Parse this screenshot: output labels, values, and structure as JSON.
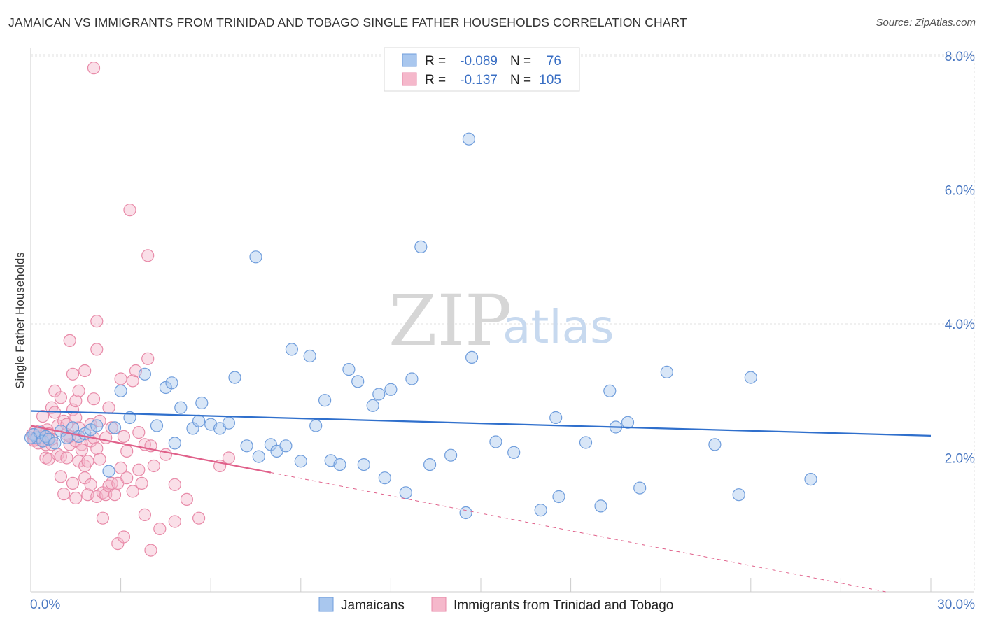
{
  "title": "JAMAICAN VS IMMIGRANTS FROM TRINIDAD AND TOBAGO SINGLE FATHER HOUSEHOLDS CORRELATION CHART",
  "source": "Source: ZipAtlas.com",
  "watermark": {
    "zip": "ZIP",
    "atlas": "atlas"
  },
  "colors": {
    "blue_fill": "#a9c7ee",
    "blue_stroke": "#6f9ddc",
    "blue_line": "#2f6fcc",
    "pink_fill": "#f5b8cb",
    "pink_stroke": "#e88aa8",
    "pink_line": "#e0608a",
    "axis_label": "#4a78c2",
    "grid": "#e2e2e2"
  },
  "legend": {
    "rows": [
      {
        "r_label": "R =",
        "r_value": "-0.089",
        "n_label": "N =",
        "n_value": "76"
      },
      {
        "r_label": "R =",
        "r_value": "-0.137",
        "n_label": "N =",
        "n_value": "105"
      }
    ]
  },
  "bottom_legend": [
    "Jamaicans",
    "Immigrants from Trinidad and Tobago"
  ],
  "chart_data": {
    "type": "scatter",
    "title": "JAMAICAN VS IMMIGRANTS FROM TRINIDAD AND TOBAGO SINGLE FATHER HOUSEHOLDS CORRELATION CHART",
    "xlabel": "",
    "ylabel": "Single Father Households",
    "xlim": [
      0,
      30
    ],
    "ylim": [
      0,
      8.4
    ],
    "x_ticks_labeled": [
      0,
      30
    ],
    "x_tick_labels": [
      "0.0%",
      "30.0%"
    ],
    "y_ticks": [
      2,
      4,
      6,
      8
    ],
    "y_tick_labels": [
      "2.0%",
      "4.0%",
      "6.0%",
      "8.0%"
    ],
    "grid": true,
    "legend_position": "top-center",
    "series": [
      {
        "name": "Jamaicans",
        "color": "#6f9ddc",
        "r": -0.089,
        "n": 76,
        "trend": {
          "x0": 0,
          "y0": 2.7,
          "x1": 30,
          "y1": 2.33
        },
        "points": [
          [
            0.1,
            2.35
          ],
          [
            0.2,
            2.3
          ],
          [
            0.3,
            2.38
          ],
          [
            0.4,
            2.25
          ],
          [
            0.5,
            2.32
          ],
          [
            0.6,
            2.28
          ],
          [
            0.8,
            2.22
          ],
          [
            1.0,
            2.4
          ],
          [
            1.2,
            2.3
          ],
          [
            1.4,
            2.45
          ],
          [
            1.6,
            2.32
          ],
          [
            1.8,
            2.36
          ],
          [
            2.0,
            2.42
          ],
          [
            2.2,
            2.48
          ],
          [
            2.6,
            1.8
          ],
          [
            2.8,
            2.45
          ],
          [
            3.0,
            3.0
          ],
          [
            3.3,
            2.6
          ],
          [
            3.8,
            3.25
          ],
          [
            4.2,
            2.48
          ],
          [
            4.5,
            3.05
          ],
          [
            4.7,
            3.12
          ],
          [
            4.8,
            2.22
          ],
          [
            5.0,
            2.75
          ],
          [
            5.4,
            2.44
          ],
          [
            5.6,
            2.55
          ],
          [
            5.7,
            2.82
          ],
          [
            6.0,
            2.5
          ],
          [
            6.3,
            2.44
          ],
          [
            6.6,
            2.52
          ],
          [
            6.8,
            3.2
          ],
          [
            7.2,
            2.18
          ],
          [
            7.5,
            5.0
          ],
          [
            7.6,
            2.02
          ],
          [
            8.0,
            2.2
          ],
          [
            8.2,
            2.1
          ],
          [
            8.5,
            2.18
          ],
          [
            8.7,
            3.62
          ],
          [
            9.0,
            1.95
          ],
          [
            9.3,
            3.52
          ],
          [
            9.5,
            2.48
          ],
          [
            9.8,
            2.86
          ],
          [
            10.0,
            1.96
          ],
          [
            10.3,
            1.9
          ],
          [
            10.6,
            3.32
          ],
          [
            10.9,
            3.14
          ],
          [
            11.1,
            1.9
          ],
          [
            11.4,
            2.78
          ],
          [
            11.6,
            2.95
          ],
          [
            11.8,
            1.7
          ],
          [
            12.0,
            3.02
          ],
          [
            12.5,
            1.48
          ],
          [
            12.7,
            3.18
          ],
          [
            13.0,
            5.15
          ],
          [
            13.3,
            1.9
          ],
          [
            14.0,
            2.04
          ],
          [
            14.5,
            1.18
          ],
          [
            14.6,
            6.76
          ],
          [
            14.7,
            3.5
          ],
          [
            15.5,
            2.24
          ],
          [
            16.1,
            2.08
          ],
          [
            17.0,
            1.22
          ],
          [
            17.5,
            2.6
          ],
          [
            17.6,
            1.42
          ],
          [
            18.5,
            2.23
          ],
          [
            19.0,
            1.28
          ],
          [
            19.3,
            3.0
          ],
          [
            19.5,
            2.46
          ],
          [
            19.9,
            2.53
          ],
          [
            20.3,
            1.55
          ],
          [
            21.2,
            3.28
          ],
          [
            22.8,
            2.2
          ],
          [
            23.6,
            1.45
          ],
          [
            24.0,
            3.2
          ],
          [
            26.0,
            1.68
          ],
          [
            0.0,
            2.3
          ]
        ]
      },
      {
        "name": "Immigrants from Trinidad and Tobago",
        "color": "#e88aa8",
        "r": -0.137,
        "n": 105,
        "trend_solid": {
          "x0": 0,
          "y0": 2.48,
          "x1": 8.0,
          "y1": 1.78
        },
        "trend_dashed": {
          "x0": 8.0,
          "y0": 1.78,
          "x1": 28.5,
          "y1": 0.0
        },
        "points": [
          [
            0.05,
            2.35
          ],
          [
            0.1,
            2.28
          ],
          [
            0.15,
            2.4
          ],
          [
            0.2,
            2.32
          ],
          [
            0.25,
            2.22
          ],
          [
            0.3,
            2.38
          ],
          [
            0.35,
            2.3
          ],
          [
            0.4,
            2.26
          ],
          [
            0.45,
            2.34
          ],
          [
            0.5,
            2.2
          ],
          [
            0.55,
            2.42
          ],
          [
            0.6,
            2.3
          ],
          [
            0.4,
            2.62
          ],
          [
            0.5,
            2.0
          ],
          [
            0.6,
            1.98
          ],
          [
            0.7,
            2.75
          ],
          [
            0.7,
            2.2
          ],
          [
            0.8,
            3.0
          ],
          [
            0.8,
            2.68
          ],
          [
            0.9,
            2.05
          ],
          [
            0.9,
            2.48
          ],
          [
            1.0,
            2.9
          ],
          [
            1.0,
            2.02
          ],
          [
            1.0,
            1.72
          ],
          [
            1.1,
            2.55
          ],
          [
            1.1,
            1.46
          ],
          [
            1.2,
            2.35
          ],
          [
            1.2,
            2.0
          ],
          [
            1.3,
            3.75
          ],
          [
            1.3,
            2.2
          ],
          [
            1.4,
            2.72
          ],
          [
            1.4,
            1.62
          ],
          [
            1.4,
            3.25
          ],
          [
            1.5,
            2.85
          ],
          [
            1.5,
            2.25
          ],
          [
            1.5,
            1.4
          ],
          [
            1.6,
            3.0
          ],
          [
            1.6,
            2.45
          ],
          [
            1.6,
            1.95
          ],
          [
            1.7,
            2.2
          ],
          [
            1.7,
            2.12
          ],
          [
            1.8,
            1.88
          ],
          [
            1.8,
            3.3
          ],
          [
            1.8,
            1.7
          ],
          [
            1.9,
            1.95
          ],
          [
            1.9,
            1.45
          ],
          [
            2.0,
            2.5
          ],
          [
            2.0,
            2.25
          ],
          [
            2.0,
            1.6
          ],
          [
            2.1,
            2.88
          ],
          [
            2.1,
            2.3
          ],
          [
            2.2,
            2.14
          ],
          [
            2.2,
            1.42
          ],
          [
            2.2,
            3.62
          ],
          [
            2.2,
            4.04
          ],
          [
            2.3,
            2.55
          ],
          [
            2.3,
            1.98
          ],
          [
            2.4,
            1.48
          ],
          [
            2.4,
            1.1
          ],
          [
            2.5,
            2.3
          ],
          [
            2.5,
            1.45
          ],
          [
            2.6,
            2.75
          ],
          [
            2.6,
            1.58
          ],
          [
            2.7,
            2.45
          ],
          [
            2.7,
            1.62
          ],
          [
            2.8,
            1.45
          ],
          [
            2.9,
            0.72
          ],
          [
            2.9,
            1.62
          ],
          [
            3.0,
            1.85
          ],
          [
            3.0,
            3.18
          ],
          [
            3.1,
            2.32
          ],
          [
            3.1,
            0.82
          ],
          [
            3.2,
            2.1
          ],
          [
            3.2,
            1.7
          ],
          [
            3.4,
            3.15
          ],
          [
            3.4,
            1.5
          ],
          [
            3.5,
            3.3
          ],
          [
            3.6,
            2.38
          ],
          [
            3.6,
            1.82
          ],
          [
            3.7,
            1.62
          ],
          [
            3.8,
            1.15
          ],
          [
            3.8,
            2.2
          ],
          [
            3.9,
            3.48
          ],
          [
            4.0,
            0.62
          ],
          [
            4.0,
            2.18
          ],
          [
            4.1,
            1.88
          ],
          [
            4.3,
            0.94
          ],
          [
            4.5,
            2.05
          ],
          [
            4.8,
            1.05
          ],
          [
            4.8,
            1.6
          ],
          [
            5.2,
            1.38
          ],
          [
            5.6,
            1.1
          ],
          [
            6.3,
            1.88
          ],
          [
            6.6,
            2.0
          ],
          [
            2.1,
            7.82
          ],
          [
            3.3,
            5.7
          ],
          [
            3.9,
            5.02
          ],
          [
            0.3,
            2.4
          ],
          [
            0.2,
            2.3
          ],
          [
            0.1,
            2.26
          ],
          [
            0.6,
            2.36
          ],
          [
            0.7,
            2.28
          ],
          [
            1.2,
            2.5
          ],
          [
            1.3,
            2.32
          ],
          [
            1.5,
            2.6
          ]
        ]
      }
    ]
  }
}
